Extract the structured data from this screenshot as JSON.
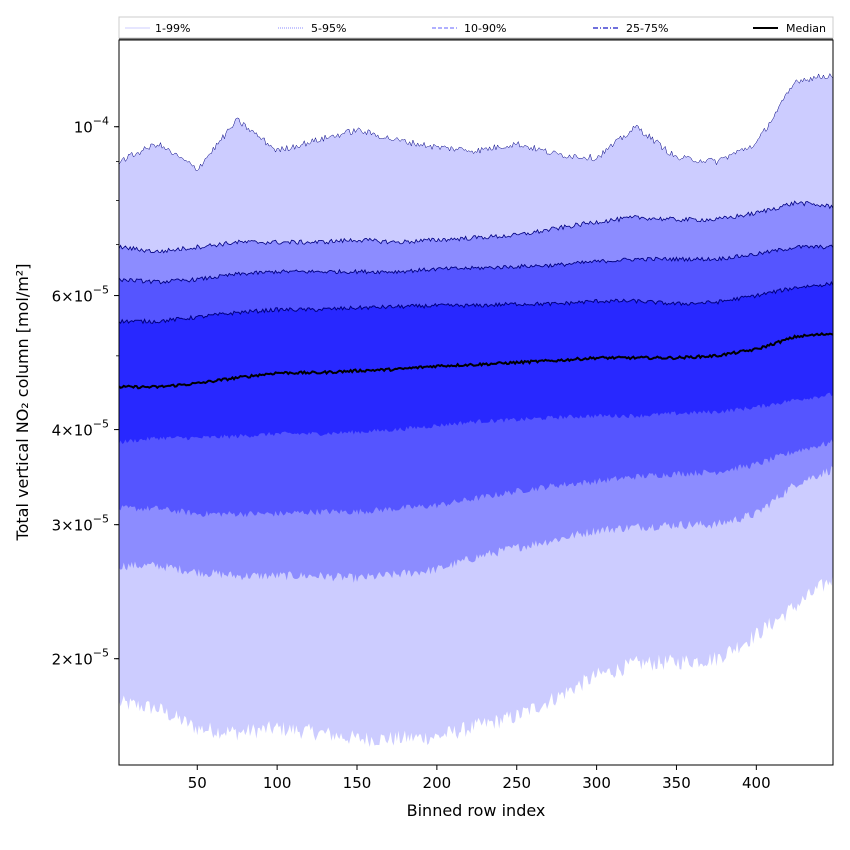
{
  "chart_data": {
    "type": "area",
    "title": "",
    "xlabel": "Binned row index",
    "ylabel": "Total vertical NO₂ column [mol/m²]",
    "yscale": "log",
    "xlim": [
      1,
      448
    ],
    "ylim": [
      1.45e-05,
      0.00013
    ],
    "x_ticks": [
      50,
      100,
      150,
      200,
      250,
      300,
      350,
      400
    ],
    "y_ticks": [
      {
        "value": 2e-05,
        "mantissa": "2",
        "exponent": "−5"
      },
      {
        "value": 3e-05,
        "mantissa": "3",
        "exponent": "−5"
      },
      {
        "value": 4e-05,
        "mantissa": "4",
        "exponent": "−5"
      },
      {
        "value": 6e-05,
        "mantissa": "6",
        "exponent": "−5"
      },
      {
        "value": 0.0001,
        "mantissa": "",
        "exponent": "−4"
      }
    ],
    "colors": {
      "band_1_99": "#ccccff",
      "band_5_95": "#8c8cff",
      "band_10_90": "#5555ff",
      "band_25_75": "#2828ff",
      "median": "#000000",
      "edge": "#000080"
    },
    "legend": {
      "placement": "top",
      "entries": [
        "1-99%",
        "5-95%",
        "10-90%",
        "25-75%",
        "Median"
      ]
    },
    "x": [
      1,
      25,
      50,
      75,
      100,
      125,
      150,
      175,
      200,
      225,
      250,
      275,
      300,
      325,
      350,
      375,
      400,
      425,
      448
    ],
    "series": [
      {
        "name": "p1",
        "values": [
          1.75e-05,
          1.72e-05,
          1.62e-05,
          1.6e-05,
          1.62e-05,
          1.6e-05,
          1.57e-05,
          1.57e-05,
          1.58e-05,
          1.63e-05,
          1.68e-05,
          1.78e-05,
          1.9e-05,
          1.97e-05,
          1.98e-05,
          2e-05,
          2.15e-05,
          2.35e-05,
          2.55e-05
        ]
      },
      {
        "name": "p5",
        "values": [
          2.65e-05,
          2.65e-05,
          2.6e-05,
          2.57e-05,
          2.57e-05,
          2.57e-05,
          2.55e-05,
          2.58e-05,
          2.62e-05,
          2.72e-05,
          2.8e-05,
          2.87e-05,
          2.95e-05,
          2.98e-05,
          3e-05,
          3e-05,
          3.1e-05,
          3.4e-05,
          3.55e-05
        ]
      },
      {
        "name": "p10",
        "values": [
          3.15e-05,
          3.15e-05,
          3.1e-05,
          3.1e-05,
          3.1e-05,
          3.12e-05,
          3.12e-05,
          3.15e-05,
          3.18e-05,
          3.25e-05,
          3.32e-05,
          3.38e-05,
          3.42e-05,
          3.47e-05,
          3.5e-05,
          3.52e-05,
          3.6e-05,
          3.75e-05,
          3.85e-05
        ]
      },
      {
        "name": "p25",
        "values": [
          3.85e-05,
          3.9e-05,
          3.9e-05,
          3.92e-05,
          3.95e-05,
          3.95e-05,
          3.97e-05,
          4e-05,
          4.05e-05,
          4.1e-05,
          4.12e-05,
          4.15e-05,
          4.17e-05,
          4.17e-05,
          4.2e-05,
          4.22e-05,
          4.28e-05,
          4.38e-05,
          4.45e-05
        ]
      },
      {
        "name": "Median",
        "values": [
          4.55e-05,
          4.55e-05,
          4.6e-05,
          4.68e-05,
          4.75e-05,
          4.75e-05,
          4.78e-05,
          4.8e-05,
          4.85e-05,
          4.87e-05,
          4.9e-05,
          4.93e-05,
          4.97e-05,
          4.97e-05,
          4.97e-05,
          5e-05,
          5.1e-05,
          5.3e-05,
          5.35e-05
        ]
      },
      {
        "name": "p75",
        "values": [
          5.55e-05,
          5.55e-05,
          5.62e-05,
          5.7e-05,
          5.75e-05,
          5.75e-05,
          5.78e-05,
          5.8e-05,
          5.82e-05,
          5.82e-05,
          5.85e-05,
          5.85e-05,
          5.9e-05,
          5.9e-05,
          5.85e-05,
          5.88e-05,
          6e-05,
          6.15e-05,
          6.22e-05
        ]
      },
      {
        "name": "p90",
        "values": [
          6.3e-05,
          6.25e-05,
          6.3e-05,
          6.4e-05,
          6.45e-05,
          6.45e-05,
          6.45e-05,
          6.45e-05,
          6.5e-05,
          6.52e-05,
          6.55e-05,
          6.58e-05,
          6.65e-05,
          6.7e-05,
          6.7e-05,
          6.7e-05,
          6.8e-05,
          6.95e-05,
          6.95e-05
        ]
      },
      {
        "name": "p95",
        "values": [
          6.95e-05,
          6.85e-05,
          6.95e-05,
          7.05e-05,
          7.05e-05,
          7.05e-05,
          7.1e-05,
          7.05e-05,
          7.1e-05,
          7.15e-05,
          7.2e-05,
          7.35e-05,
          7.5e-05,
          7.6e-05,
          7.55e-05,
          7.55e-05,
          7.7e-05,
          7.95e-05,
          7.85e-05
        ]
      },
      {
        "name": "p99",
        "values": [
          9e-05,
          9.5e-05,
          8.8e-05,
          0.000102,
          9.3e-05,
          9.6e-05,
          9.9e-05,
          9.6e-05,
          9.4e-05,
          9.3e-05,
          9.5e-05,
          9.2e-05,
          9.1e-05,
          0.0001,
          9.1e-05,
          9e-05,
          9.5e-05,
          0.000115,
          0.000117
        ]
      }
    ]
  }
}
